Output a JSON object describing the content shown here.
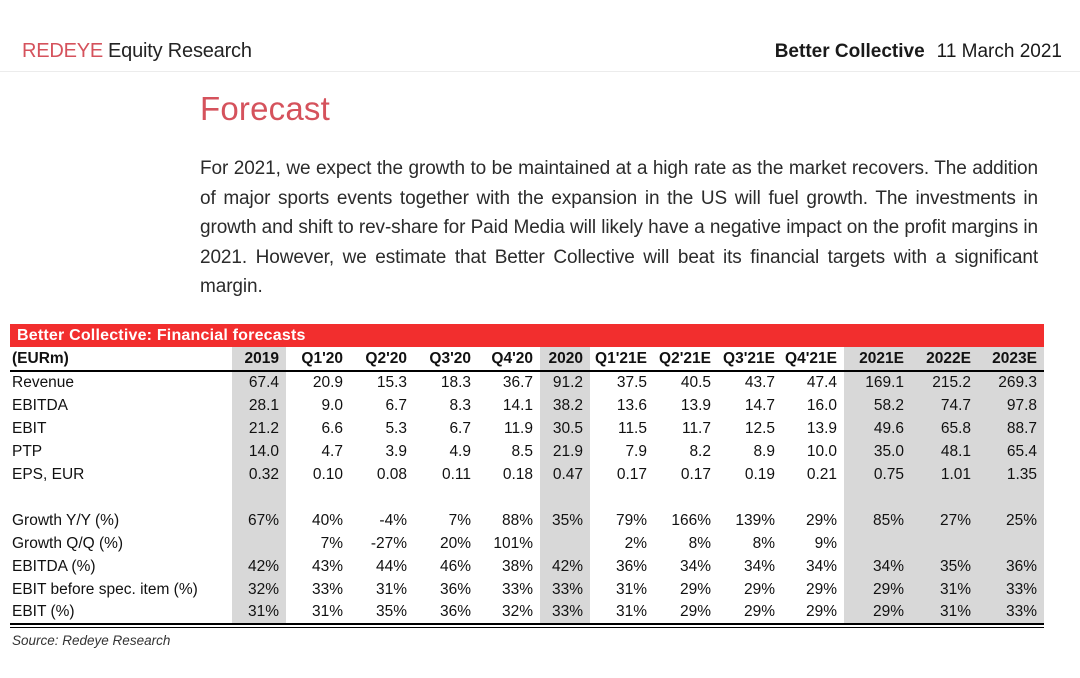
{
  "page_header": {
    "brand": "REDEYE",
    "brand_suffix": "Equity Research",
    "company": "Better Collective",
    "date": "11 March 2021"
  },
  "section": {
    "title": "Forecast",
    "paragraph": "For 2021, we expect the growth to be maintained at a high rate as the market recovers. The addition of major sports events together with the expansion in the US will fuel growth. The investments in growth and shift to rev-share for Paid Media will likely have a negative impact on the profit margins in 2021. However, we estimate that Better Collective will beat its financial targets with a significant margin."
  },
  "table": {
    "title": "Better Collective: Financial forecasts",
    "unit_label": "(EURm)",
    "columns": [
      "2019",
      "Q1'20",
      "Q2'20",
      "Q3'20",
      "Q4'20",
      "2020",
      "Q1'21E",
      "Q2'21E",
      "Q3'21E",
      "Q4'21E",
      "2021E",
      "2022E",
      "2023E"
    ],
    "highlighted_columns": [
      "2019",
      "2020",
      "2021E",
      "2022E",
      "2023E"
    ],
    "rows": [
      {
        "label": "Revenue",
        "values": [
          "67.4",
          "20.9",
          "15.3",
          "18.3",
          "36.7",
          "91.2",
          "37.5",
          "40.5",
          "43.7",
          "47.4",
          "169.1",
          "215.2",
          "269.3"
        ]
      },
      {
        "label": "EBITDA",
        "values": [
          "28.1",
          "9.0",
          "6.7",
          "8.3",
          "14.1",
          "38.2",
          "13.6",
          "13.9",
          "14.7",
          "16.0",
          "58.2",
          "74.7",
          "97.8"
        ]
      },
      {
        "label": "EBIT",
        "values": [
          "21.2",
          "6.6",
          "5.3",
          "6.7",
          "11.9",
          "30.5",
          "11.5",
          "11.7",
          "12.5",
          "13.9",
          "49.6",
          "65.8",
          "88.7"
        ]
      },
      {
        "label": "PTP",
        "values": [
          "14.0",
          "4.7",
          "3.9",
          "4.9",
          "8.5",
          "21.9",
          "7.9",
          "8.2",
          "8.9",
          "10.0",
          "35.0",
          "48.1",
          "65.4"
        ]
      },
      {
        "label": "EPS, EUR",
        "values": [
          "0.32",
          "0.10",
          "0.08",
          "0.11",
          "0.18",
          "0.47",
          "0.17",
          "0.17",
          "0.19",
          "0.21",
          "0.75",
          "1.01",
          "1.35"
        ]
      },
      {
        "label": "",
        "values": [
          "",
          "",
          "",
          "",
          "",
          "",
          "",
          "",
          "",
          "",
          "",
          "",
          ""
        ]
      },
      {
        "label": "Growth Y/Y (%)",
        "values": [
          "67%",
          "40%",
          "-4%",
          "7%",
          "88%",
          "35%",
          "79%",
          "166%",
          "139%",
          "29%",
          "85%",
          "27%",
          "25%"
        ]
      },
      {
        "label": "Growth Q/Q (%)",
        "values": [
          "",
          "7%",
          "-27%",
          "20%",
          "101%",
          "",
          "2%",
          "8%",
          "8%",
          "9%",
          "",
          "",
          ""
        ]
      },
      {
        "label": "EBITDA (%)",
        "values": [
          "42%",
          "43%",
          "44%",
          "46%",
          "38%",
          "42%",
          "36%",
          "34%",
          "34%",
          "34%",
          "34%",
          "35%",
          "36%"
        ]
      },
      {
        "label": "EBIT before spec. item (%)",
        "values": [
          "32%",
          "33%",
          "31%",
          "36%",
          "33%",
          "33%",
          "31%",
          "29%",
          "29%",
          "29%",
          "29%",
          "31%",
          "33%"
        ]
      },
      {
        "label": "EBIT (%)",
        "values": [
          "31%",
          "31%",
          "35%",
          "36%",
          "32%",
          "33%",
          "31%",
          "29%",
          "29%",
          "29%",
          "29%",
          "31%",
          "33%"
        ]
      }
    ],
    "source": "Source: Redeye Research"
  },
  "colors": {
    "brand_red": "#d5525c",
    "table_bar_red": "#f22e2e",
    "band_gray": "#d8d8d8",
    "text": "#1c1c1c"
  }
}
